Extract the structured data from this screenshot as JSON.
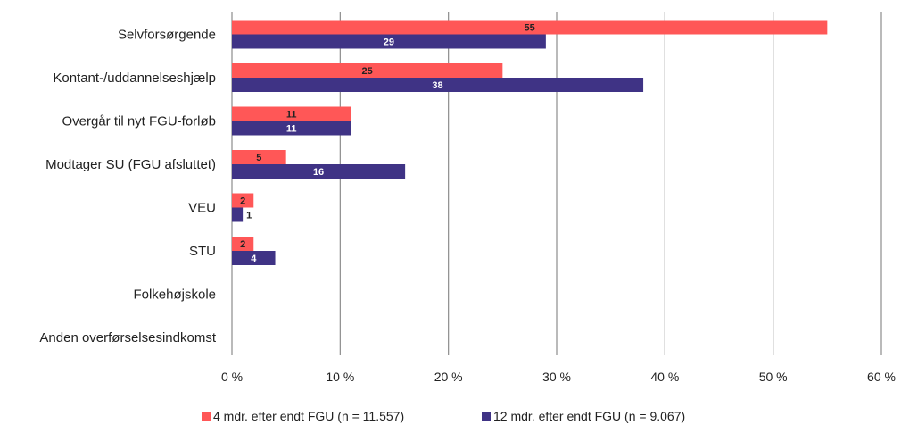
{
  "chart_data": {
    "type": "bar",
    "orientation": "horizontal",
    "categories": [
      "Selvforsørgende",
      "Kontant-/uddannelseshjælp",
      "Overgår til nyt FGU-forløb",
      "Modtager SU (FGU afsluttet)",
      "VEU",
      "STU",
      "Folkehøjskole",
      "Anden overførselsesindkomst"
    ],
    "series": [
      {
        "name": "4 mdr. efter endt FGU (n = 11.557)",
        "color": "#FF5757",
        "label_color": "#222222",
        "values": [
          55,
          25,
          11,
          5,
          2,
          2,
          0,
          0
        ],
        "labels": [
          "55",
          "25",
          "11",
          "5",
          "2",
          "2",
          "",
          ""
        ]
      },
      {
        "name": "12 mdr. efter endt FGU (n = 9.067)",
        "color": "#3F3385",
        "label_color": "#ffffff",
        "values": [
          29,
          38,
          11,
          16,
          1,
          4,
          0,
          0
        ],
        "labels": [
          "29",
          "38",
          "11",
          "16",
          "1",
          "4",
          "",
          ""
        ]
      }
    ],
    "xlim": [
      0,
      60
    ],
    "xticks": [
      0,
      10,
      20,
      30,
      40,
      50,
      60
    ],
    "xtick_labels": [
      "0 %",
      "10 %",
      "20 %",
      "30 %",
      "40 %",
      "50 %",
      "60 %"
    ],
    "grid": "vertical",
    "legend_position": "bottom"
  }
}
